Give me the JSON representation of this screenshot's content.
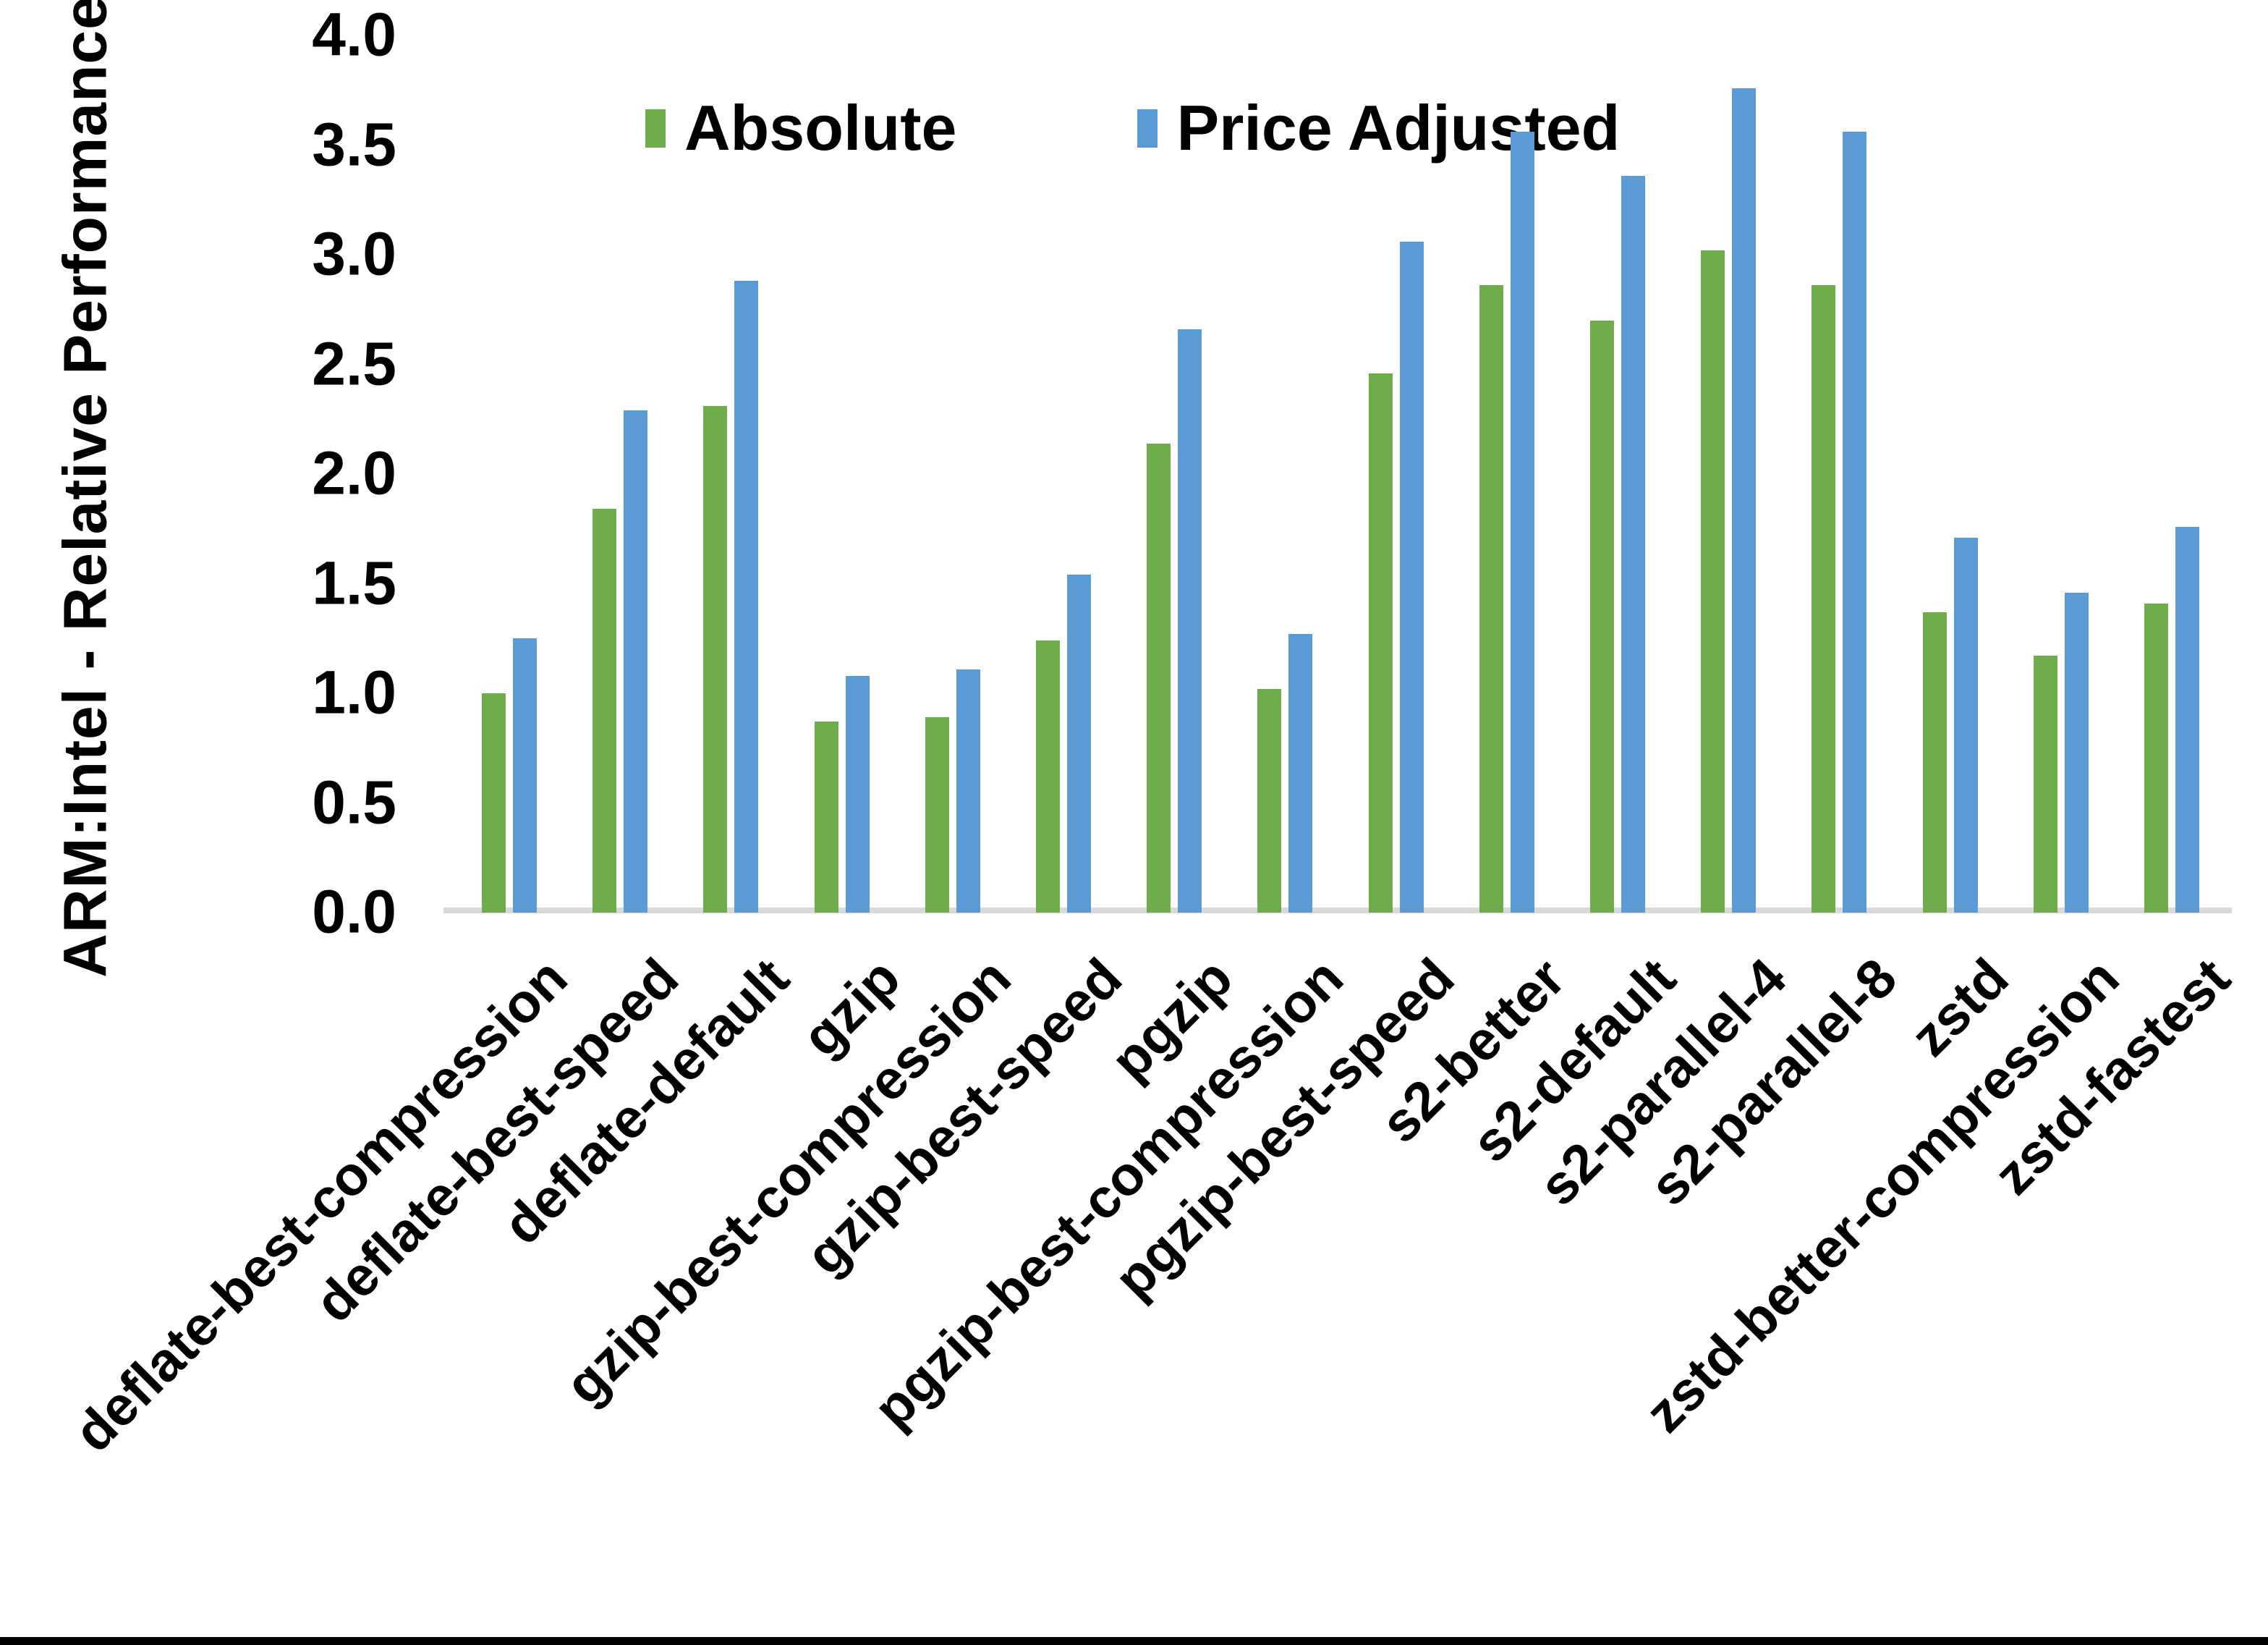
{
  "chart_data": {
    "type": "bar",
    "title": "",
    "ylabel": "ARM:Intel - Relative Performance",
    "xlabel": "",
    "categories": [
      "deflate-best-compression",
      "deflate-best-speed",
      "deflate-default",
      "gzip",
      "gzip-best-compression",
      "gzip-best-speed",
      "pgzip",
      "pgzip-best-compression",
      "pgzip-best-speed",
      "s2-better",
      "s2-default",
      "s2-parallel-4",
      "s2-parallel-8",
      "zstd",
      "zstd-better-compression",
      "zstd-fastest"
    ],
    "series": [
      {
        "name": "Absolute",
        "color": "#6FAC4B",
        "values": [
          1.0,
          1.84,
          2.31,
          0.87,
          0.89,
          1.24,
          2.14,
          1.02,
          2.46,
          2.86,
          2.7,
          3.02,
          2.86,
          1.37,
          1.17,
          1.41
        ]
      },
      {
        "name": "Price Adjusted",
        "color": "#5B9BD5",
        "values": [
          1.25,
          2.29,
          2.88,
          1.08,
          1.11,
          1.54,
          2.66,
          1.27,
          3.06,
          3.56,
          3.36,
          3.76,
          3.56,
          1.71,
          1.46,
          1.76
        ]
      }
    ],
    "ylim": [
      0.0,
      4.0
    ],
    "ytick_labels": [
      "0.0",
      "0.5",
      "1.0",
      "1.5",
      "2.0",
      "2.5",
      "3.0",
      "3.5",
      "4.0"
    ],
    "grid": false,
    "legend_position": "top-center",
    "axis_line_color": "#d9d9d9",
    "bar_label_rotation_deg": 45
  }
}
